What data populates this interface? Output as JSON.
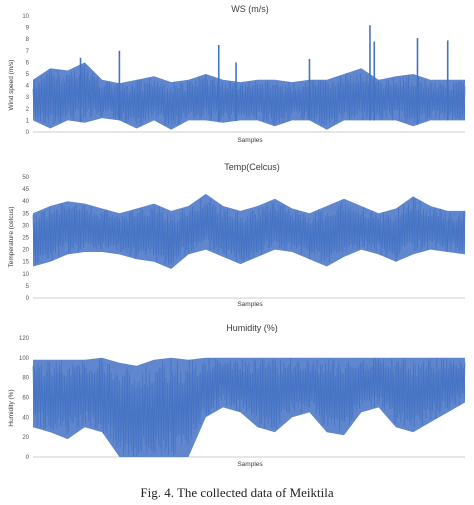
{
  "caption": "Fig. 4.   The collected data of Meiktila",
  "color": "#4472c4",
  "chart_data": [
    {
      "type": "line",
      "title": "WS (m/s)",
      "xlabel": "Samples",
      "ylabel": "Wind speed (m/s)",
      "ylim": [
        0,
        10
      ],
      "yticks": [
        "0",
        "1",
        "2",
        "3",
        "4",
        "5",
        "6",
        "7",
        "8",
        "9",
        "10"
      ],
      "series": [
        {
          "x": [
            0,
            4,
            8,
            12,
            16,
            20,
            24,
            28,
            32,
            36,
            40,
            44,
            48,
            52,
            56,
            60,
            64,
            68,
            72,
            76,
            80,
            84,
            88,
            92,
            96,
            100
          ],
          "low": [
            1.0,
            0.3,
            1.0,
            0.8,
            1.2,
            1.0,
            0.3,
            1.0,
            0.2,
            1.0,
            1.0,
            0.8,
            1.0,
            1.0,
            0.5,
            1.0,
            1.0,
            0.2,
            1.0,
            1.0,
            1.0,
            1.0,
            0.5,
            1.0,
            1.0,
            1.0
          ],
          "high": [
            4.5,
            5.5,
            5.3,
            6.0,
            4.5,
            4.2,
            4.5,
            4.8,
            4.3,
            4.5,
            5.0,
            4.5,
            4.3,
            4.5,
            4.5,
            4.3,
            4.5,
            4.5,
            5.0,
            5.5,
            4.5,
            4.8,
            5.0,
            4.5,
            4.5,
            4.5
          ],
          "spikes": [
            [
              11,
              6.4
            ],
            [
              20,
              7.0
            ],
            [
              43,
              7.5
            ],
            [
              47,
              6.0
            ],
            [
              64,
              6.3
            ],
            [
              78,
              9.2
            ],
            [
              79,
              7.8
            ],
            [
              89,
              8.1
            ],
            [
              96,
              7.9
            ]
          ]
        }
      ]
    },
    {
      "type": "line",
      "title": "Temp(Celcus)",
      "xlabel": "Samples",
      "ylabel": "Temperature (celcus)",
      "ylim": [
        0,
        50
      ],
      "yticks": [
        "0",
        "5",
        "10",
        "15",
        "20",
        "25",
        "30",
        "35",
        "40",
        "45",
        "50"
      ],
      "series": [
        {
          "x": [
            0,
            4,
            8,
            12,
            16,
            20,
            24,
            28,
            32,
            36,
            40,
            44,
            48,
            52,
            56,
            60,
            64,
            68,
            72,
            76,
            80,
            84,
            88,
            92,
            96,
            100
          ],
          "low": [
            13,
            15,
            18,
            19,
            19,
            18,
            16,
            15,
            12,
            18,
            20,
            17,
            14,
            17,
            20,
            19,
            16,
            13,
            17,
            20,
            18,
            15,
            18,
            20,
            19,
            18
          ],
          "high": [
            35,
            38,
            40,
            39,
            37,
            35,
            37,
            39,
            36,
            38,
            43,
            38,
            36,
            38,
            41,
            37,
            35,
            38,
            41,
            38,
            35,
            37,
            42,
            38,
            36,
            36
          ]
        }
      ]
    },
    {
      "type": "line",
      "title": "Humidity (%)",
      "xlabel": "Samples",
      "ylabel": "Humidity (%)",
      "ylim": [
        0,
        120
      ],
      "yticks": [
        "0",
        "20",
        "40",
        "60",
        "80",
        "100",
        "120"
      ],
      "series": [
        {
          "x": [
            0,
            4,
            8,
            12,
            16,
            20,
            24,
            28,
            32,
            36,
            40,
            44,
            48,
            52,
            56,
            60,
            64,
            68,
            72,
            76,
            80,
            84,
            88,
            92,
            96,
            100
          ],
          "low": [
            30,
            25,
            18,
            30,
            25,
            0,
            0,
            0,
            0,
            0,
            40,
            50,
            45,
            30,
            25,
            40,
            45,
            25,
            22,
            45,
            50,
            30,
            25,
            35,
            45,
            55
          ],
          "high": [
            98,
            98,
            98,
            98,
            100,
            95,
            92,
            98,
            100,
            98,
            100,
            100,
            100,
            100,
            100,
            100,
            100,
            100,
            100,
            100,
            100,
            100,
            100,
            100,
            100,
            100
          ]
        }
      ]
    }
  ]
}
